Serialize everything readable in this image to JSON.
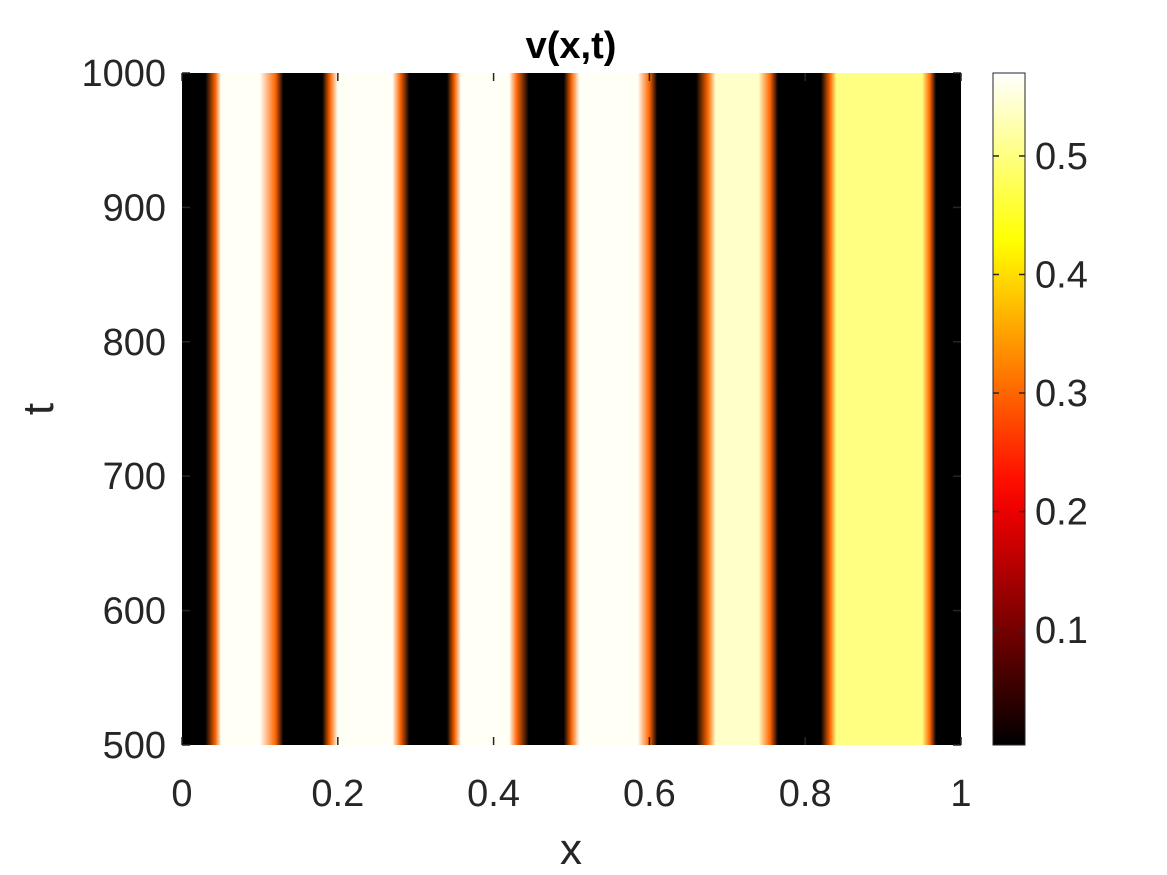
{
  "chart_data": {
    "type": "heatmap",
    "title": "v(x,t)",
    "xlabel": "x",
    "ylabel": "t",
    "xlim": [
      0,
      1
    ],
    "ylim": [
      500,
      1000
    ],
    "x_ticks": [
      "0",
      "0.2",
      "0.4",
      "0.6",
      "0.8",
      "1"
    ],
    "y_ticks": [
      "500",
      "600",
      "700",
      "800",
      "900",
      "1000"
    ],
    "colormap": "hot",
    "color_range": [
      0.003,
      0.57
    ],
    "colorbar_ticks": [
      "0.1",
      "0.2",
      "0.3",
      "0.4",
      "0.5"
    ],
    "colorbar_position": "right",
    "profile": {
      "x": [
        0.0,
        0.03,
        0.043,
        0.05,
        0.1,
        0.12,
        0.13,
        0.18,
        0.19,
        0.2,
        0.27,
        0.28,
        0.292,
        0.34,
        0.35,
        0.358,
        0.42,
        0.43,
        0.445,
        0.49,
        0.5,
        0.51,
        0.585,
        0.6,
        0.61,
        0.66,
        0.675,
        0.685,
        0.74,
        0.755,
        0.765,
        0.82,
        0.832,
        0.84,
        0.95,
        0.96,
        0.968,
        1.0
      ],
      "value": [
        0.003,
        0.003,
        0.3,
        0.565,
        0.565,
        0.3,
        0.003,
        0.003,
        0.3,
        0.565,
        0.565,
        0.3,
        0.003,
        0.003,
        0.3,
        0.565,
        0.565,
        0.3,
        0.003,
        0.003,
        0.3,
        0.565,
        0.565,
        0.3,
        0.003,
        0.003,
        0.3,
        0.54,
        0.54,
        0.3,
        0.003,
        0.003,
        0.3,
        0.5,
        0.5,
        0.3,
        0.003,
        0.003
      ]
    }
  }
}
